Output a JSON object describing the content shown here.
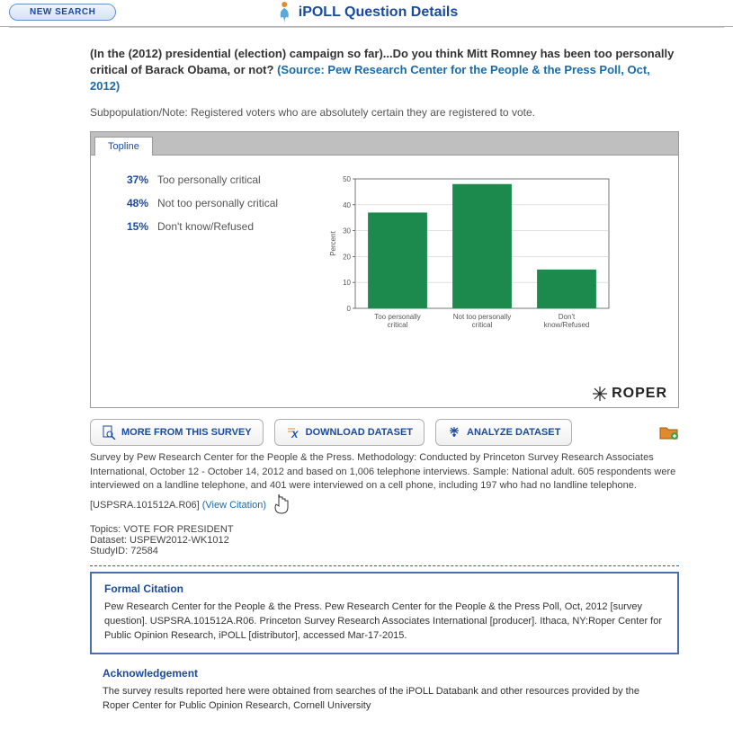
{
  "header": {
    "new_search_label": "NEW SEARCH",
    "page_title": "iPOLL Question Details"
  },
  "question": {
    "text": "(In the (2012) presidential (election) campaign so far)...Do you think Mitt Romney has been too personally critical of Barack Obama, or not?",
    "source": "(Source: Pew Research Center for the People & the Press Poll, Oct, 2012)"
  },
  "subpopulation": "Subpopulation/Note: Registered voters who are absolutely certain they are registered to vote.",
  "tabs": {
    "topline": "Topline"
  },
  "topline": [
    {
      "pct": "37%",
      "label": "Too personally critical"
    },
    {
      "pct": "48%",
      "label": "Not too personally critical"
    },
    {
      "pct": "15%",
      "label": "Don't know/Refused"
    }
  ],
  "chart": {
    "type": "bar",
    "categories": [
      "Too personally\ncritical",
      "Not too personally\ncritical",
      "Don't\nknow/Refused"
    ],
    "values": [
      37,
      48,
      15
    ],
    "bar_color": "#1b8a4c",
    "ylim": [
      0,
      50
    ],
    "ytick_step": 10,
    "ylabel": "Percent",
    "label_fontsize": 8,
    "tick_fontsize": 8,
    "axis_color": "#555555",
    "grid_color": "#cfcfcf",
    "background_color": "#ffffff",
    "bar_width": 0.7
  },
  "roper_logo": "ROPER",
  "buttons": {
    "more": "MORE FROM THIS SURVEY",
    "download": "DOWNLOAD DATASET",
    "analyze": "ANALYZE DATASET"
  },
  "methodology": "Survey by Pew Research Center for the People & the Press. Methodology: Conducted by Princeton Survey Research Associates International, October 12 - October 14, 2012 and based on 1,006 telephone interviews. Sample: National adult. 605 respondents were interviewed on a landline telephone, and 401 were interviewed on a cell phone, including 197 who had no landline telephone. [USPSRA.101512A.R06] ",
  "view_citation": "(View Citation)",
  "topics_label": "Topics:",
  "topics_value": "VOTE FOR PRESIDENT",
  "dataset_label": "Dataset:",
  "dataset_value": "USPEW2012-WK1012",
  "studyid_label": "StudyID:",
  "studyid_value": "72584",
  "citation": {
    "title": "Formal Citation",
    "body": "Pew Research Center for the People & the Press. Pew Research Center for the People & the Press Poll, Oct, 2012 [survey question]. USPSRA.101512A.R06. Princeton Survey Research Associates International [producer]. Ithaca, NY:Roper Center for Public Opinion Research, iPOLL [distributor], accessed Mar-17-2015."
  },
  "ack": {
    "title": "Acknowledgement",
    "body": "The survey results reported here were obtained from searches of the iPOLL Databank and other resources provided by the Roper Center for Public Opinion Research, Cornell University"
  }
}
